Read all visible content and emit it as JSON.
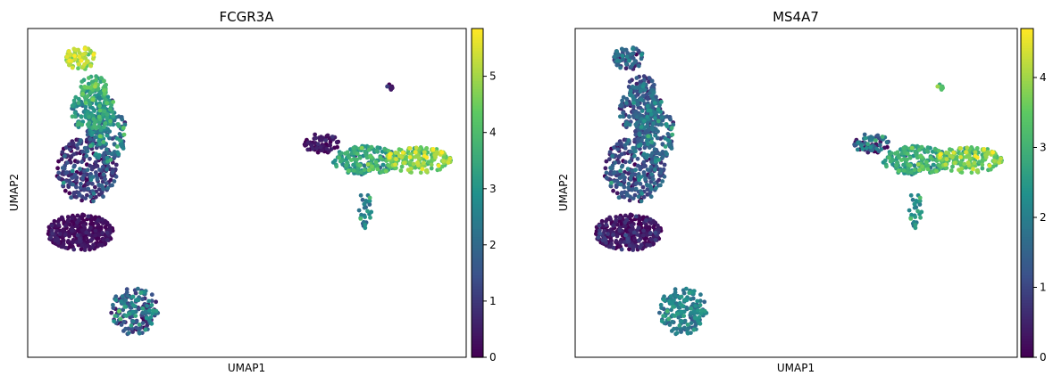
{
  "chart_data": [
    {
      "type": "scatter",
      "title": "FCGR3A",
      "xlabel": "UMAP1",
      "ylabel": "UMAP2",
      "grid": false,
      "legend": "none",
      "colormap": [
        "#440154",
        "#3b528b",
        "#21918c",
        "#5ec962",
        "#fde725"
      ],
      "colorbar": {
        "min": 0,
        "max": 5.85,
        "ticks": [
          0,
          1,
          2,
          3,
          4,
          5
        ],
        "tick_labels": [
          "0",
          "1",
          "2",
          "3",
          "4",
          "5"
        ]
      },
      "xlim": [
        0,
        10
      ],
      "ylim": [
        0,
        10
      ],
      "clusters": [
        {
          "name": "",
          "cx": 1.2,
          "cy": 3.8,
          "rx": 0.75,
          "ry": 0.55,
          "n": 320,
          "value_mean": 0.15,
          "value_sd": 0.25
        },
        {
          "name": "",
          "cx": 1.35,
          "cy": 5.7,
          "rx": 0.7,
          "ry": 1.0,
          "n": 280,
          "value_mean": 0.8,
          "value_sd": 0.8
        },
        {
          "name": "",
          "cx": 1.8,
          "cy": 6.8,
          "rx": 0.45,
          "ry": 0.9,
          "n": 140,
          "value_mean": 2.2,
          "value_sd": 0.9
        },
        {
          "name": "",
          "cx": 1.5,
          "cy": 7.5,
          "rx": 0.5,
          "ry": 0.7,
          "n": 200,
          "value_mean": 3.0,
          "value_sd": 0.7
        },
        {
          "name": "",
          "cx": 1.2,
          "cy": 9.1,
          "rx": 0.35,
          "ry": 0.35,
          "n": 75,
          "value_mean": 5.0,
          "value_sd": 0.5
        },
        {
          "name": "",
          "cx": 1.5,
          "cy": 8.2,
          "rx": 0.3,
          "ry": 0.4,
          "n": 50,
          "value_mean": 4.0,
          "value_sd": 0.6
        },
        {
          "name": "",
          "cx": 2.45,
          "cy": 1.4,
          "rx": 0.55,
          "ry": 0.75,
          "n": 170,
          "value_mean": 1.8,
          "value_sd": 1.0
        },
        {
          "name": "",
          "cx": 6.7,
          "cy": 6.5,
          "rx": 0.4,
          "ry": 0.3,
          "n": 70,
          "value_mean": 0.2,
          "value_sd": 0.3
        },
        {
          "name": "",
          "cx": 7.7,
          "cy": 6.0,
          "rx": 0.75,
          "ry": 0.45,
          "n": 200,
          "value_mean": 3.2,
          "value_sd": 0.7
        },
        {
          "name": "",
          "cx": 8.9,
          "cy": 6.0,
          "rx": 0.75,
          "ry": 0.4,
          "n": 180,
          "value_mean": 4.6,
          "value_sd": 0.6
        },
        {
          "name": "",
          "cx": 7.7,
          "cy": 4.5,
          "rx": 0.15,
          "ry": 0.6,
          "n": 30,
          "value_mean": 2.5,
          "value_sd": 0.6
        },
        {
          "name": "",
          "cx": 8.25,
          "cy": 8.2,
          "rx": 0.07,
          "ry": 0.12,
          "n": 8,
          "value_mean": 0.3,
          "value_sd": 0.3
        }
      ]
    },
    {
      "type": "scatter",
      "title": "MS4A7",
      "xlabel": "UMAP1",
      "ylabel": "UMAP2",
      "grid": false,
      "legend": "none",
      "colormap": [
        "#440154",
        "#3b528b",
        "#21918c",
        "#5ec962",
        "#fde725"
      ],
      "colorbar": {
        "min": 0,
        "max": 4.7,
        "ticks": [
          0,
          1,
          2,
          3,
          4
        ],
        "tick_labels": [
          "0",
          "1",
          "2",
          "3",
          "4"
        ]
      },
      "xlim": [
        0,
        10
      ],
      "ylim": [
        0,
        10
      ],
      "clusters": [
        {
          "name": "",
          "cx": 1.2,
          "cy": 3.8,
          "rx": 0.75,
          "ry": 0.55,
          "n": 320,
          "value_mean": 0.2,
          "value_sd": 0.35
        },
        {
          "name": "",
          "cx": 1.35,
          "cy": 5.7,
          "rx": 0.7,
          "ry": 1.0,
          "n": 280,
          "value_mean": 1.0,
          "value_sd": 0.6
        },
        {
          "name": "",
          "cx": 1.8,
          "cy": 6.8,
          "rx": 0.45,
          "ry": 0.9,
          "n": 140,
          "value_mean": 1.5,
          "value_sd": 0.6
        },
        {
          "name": "",
          "cx": 1.5,
          "cy": 7.5,
          "rx": 0.5,
          "ry": 0.7,
          "n": 200,
          "value_mean": 1.3,
          "value_sd": 0.6
        },
        {
          "name": "",
          "cx": 1.2,
          "cy": 9.1,
          "rx": 0.35,
          "ry": 0.35,
          "n": 75,
          "value_mean": 1.2,
          "value_sd": 0.6
        },
        {
          "name": "",
          "cx": 1.5,
          "cy": 8.2,
          "rx": 0.3,
          "ry": 0.4,
          "n": 50,
          "value_mean": 1.3,
          "value_sd": 0.6
        },
        {
          "name": "",
          "cx": 2.45,
          "cy": 1.4,
          "rx": 0.55,
          "ry": 0.75,
          "n": 170,
          "value_mean": 2.0,
          "value_sd": 0.4
        },
        {
          "name": "",
          "cx": 6.7,
          "cy": 6.5,
          "rx": 0.4,
          "ry": 0.3,
          "n": 70,
          "value_mean": 1.2,
          "value_sd": 0.8
        },
        {
          "name": "",
          "cx": 7.7,
          "cy": 6.0,
          "rx": 0.75,
          "ry": 0.45,
          "n": 200,
          "value_mean": 2.7,
          "value_sd": 0.5
        },
        {
          "name": "",
          "cx": 8.9,
          "cy": 6.0,
          "rx": 0.75,
          "ry": 0.4,
          "n": 180,
          "value_mean": 3.5,
          "value_sd": 0.5
        },
        {
          "name": "",
          "cx": 7.7,
          "cy": 4.5,
          "rx": 0.15,
          "ry": 0.6,
          "n": 30,
          "value_mean": 2.3,
          "value_sd": 0.4
        },
        {
          "name": "",
          "cx": 8.25,
          "cy": 8.2,
          "rx": 0.07,
          "ry": 0.12,
          "n": 8,
          "value_mean": 3.2,
          "value_sd": 0.3
        }
      ]
    }
  ]
}
